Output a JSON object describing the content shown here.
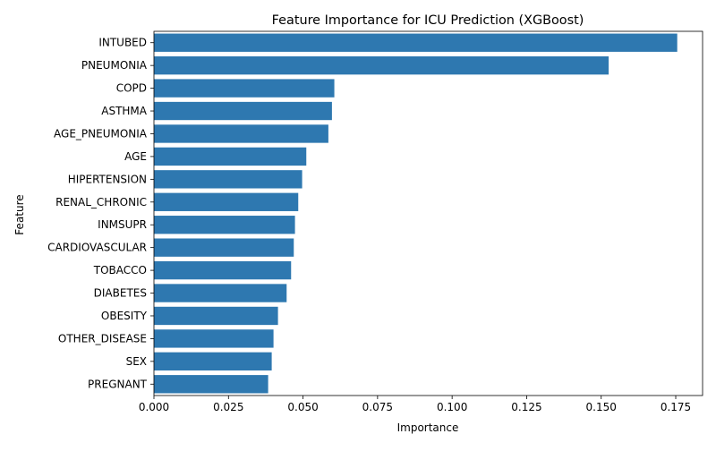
{
  "chart_data": {
    "type": "bar",
    "orientation": "horizontal",
    "title": "Feature Importance for ICU Prediction (XGBoost)",
    "xlabel": "Importance",
    "ylabel": "Feature",
    "categories": [
      "INTUBED",
      "PNEUMONIA",
      "COPD",
      "ASTHMA",
      "AGE_PNEUMONIA",
      "AGE",
      "HIPERTENSION",
      "RENAL_CHRONIC",
      "INMSUPR",
      "CARDIOVASCULAR",
      "TOBACCO",
      "DIABETES",
      "OBESITY",
      "OTHER_DISEASE",
      "SEX",
      "PREGNANT"
    ],
    "values": [
      0.1755,
      0.1525,
      0.0605,
      0.0597,
      0.0585,
      0.0511,
      0.0497,
      0.0484,
      0.0473,
      0.0469,
      0.046,
      0.0445,
      0.0416,
      0.0401,
      0.0395,
      0.0383
    ],
    "xlim": [
      0,
      0.184
    ],
    "xticks": [
      0.0,
      0.025,
      0.05,
      0.075,
      0.1,
      0.125,
      0.15,
      0.175
    ],
    "xtick_labels": [
      "0.000",
      "0.025",
      "0.050",
      "0.075",
      "0.100",
      "0.125",
      "0.150",
      "0.175"
    ],
    "bar_color": "#2e78b0",
    "grid": false,
    "legend": "none"
  }
}
